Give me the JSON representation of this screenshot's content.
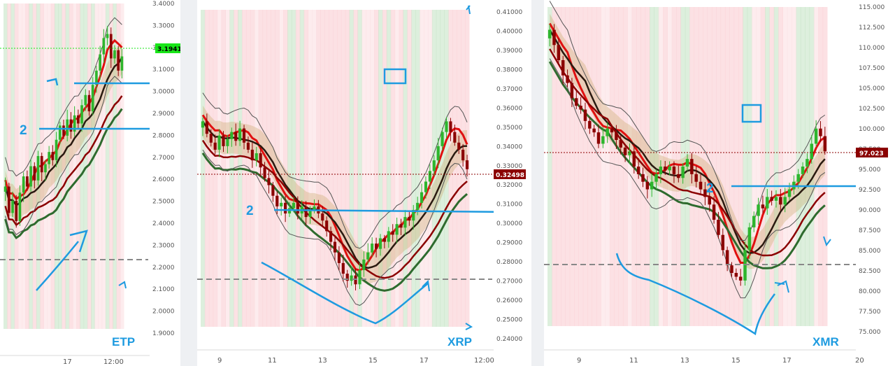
{
  "colors": {
    "bull": "#2db52d",
    "bear": "#8b0000",
    "annotation": "#1e9be0",
    "pink_zone": "#f9c9cd",
    "green_zone": "#9fd19f",
    "dashed": "#888888",
    "price_tag_bg": "#8b0000",
    "price_tag_bg_green": "#19e619"
  },
  "chart_data": [
    {
      "type": "candlestick",
      "symbol": "ETP",
      "ylim": [
        1.85,
        3.45
      ],
      "y_ticks": [
        "3.4000",
        "3.3000",
        "3.2000",
        "3.1000",
        "3.0000",
        "2.9000",
        "2.8000",
        "2.7000",
        "2.6000",
        "2.5000",
        "2.4000",
        "2.3000",
        "2.2000",
        "2.1000",
        "2.0000",
        "1.9000"
      ],
      "x_ticks": [
        "17",
        "12:00"
      ],
      "last_price": "3.1941",
      "hlines": [
        3.04,
        2.83
      ],
      "dashed_line": 2.23,
      "annotations": [
        "1",
        "2",
        "1"
      ],
      "close": [
        2.55,
        2.42,
        2.48,
        2.38,
        2.52,
        2.6,
        2.55,
        2.65,
        2.58,
        2.7,
        2.62,
        2.66,
        2.72,
        2.68,
        2.78,
        2.85,
        2.8,
        2.88,
        2.82,
        2.9,
        2.86,
        2.95,
        3.0,
        2.92,
        3.05,
        3.12,
        3.2,
        3.28,
        3.3,
        3.18,
        3.22,
        3.12,
        3.19
      ]
    },
    {
      "type": "candlestick",
      "symbol": "XRP",
      "ylim": [
        0.236,
        0.415
      ],
      "y_ticks": [
        "0.41000",
        "0.40000",
        "0.39000",
        "0.38000",
        "0.37000",
        "0.36000",
        "0.35000",
        "0.34000",
        "0.33000",
        "0.32000",
        "0.31000",
        "0.30000",
        "0.29000",
        "0.28000",
        "0.27000",
        "0.26000",
        "0.25000",
        "0.24000"
      ],
      "x_ticks": [
        "9",
        "11",
        "13",
        "15",
        "17",
        "12:00"
      ],
      "last_price": "0.32498",
      "hlines": [
        0.306
      ],
      "dashed_line": 0.2715,
      "annotations": [
        "2",
        "1"
      ],
      "close": [
        0.352,
        0.345,
        0.34,
        0.336,
        0.344,
        0.338,
        0.342,
        0.346,
        0.341,
        0.348,
        0.34,
        0.336,
        0.33,
        0.334,
        0.326,
        0.32,
        0.316,
        0.31,
        0.304,
        0.306,
        0.3,
        0.303,
        0.306,
        0.3,
        0.304,
        0.298,
        0.302,
        0.304,
        0.3,
        0.296,
        0.29,
        0.284,
        0.278,
        0.272,
        0.266,
        0.262,
        0.265,
        0.26,
        0.268,
        0.274,
        0.278,
        0.283,
        0.28,
        0.286,
        0.284,
        0.29,
        0.288,
        0.294,
        0.292,
        0.298,
        0.296,
        0.302,
        0.306,
        0.312,
        0.318,
        0.324,
        0.33,
        0.338,
        0.346,
        0.352,
        0.346,
        0.34,
        0.336,
        0.33,
        0.325
      ]
    },
    {
      "type": "candlestick",
      "symbol": "XMR",
      "ylim": [
        74.0,
        116.0
      ],
      "y_ticks": [
        "115.000",
        "112.500",
        "110.000",
        "107.500",
        "105.000",
        "102.500",
        "100.000",
        "97.500",
        "95.000",
        "92.500",
        "90.000",
        "87.500",
        "85.000",
        "82.500",
        "80.000",
        "77.500",
        "75.000"
      ],
      "x_ticks": [
        "9",
        "11",
        "13",
        "15",
        "17",
        "20"
      ],
      "last_price": "97.023",
      "hlines": [
        92.8
      ],
      "dashed_line": 83.3,
      "annotations": [
        "2",
        "1"
      ],
      "close": [
        113,
        111,
        109,
        107,
        106,
        104,
        103,
        102.5,
        101,
        100,
        99.5,
        98,
        99,
        100,
        99.5,
        98.5,
        97.5,
        96.5,
        97,
        95,
        94,
        93,
        92,
        93,
        94,
        95,
        94.5,
        95,
        94,
        93.5,
        95,
        96,
        94,
        93,
        92,
        91,
        90,
        88,
        86,
        84,
        82,
        81,
        80.5,
        80,
        84,
        87,
        88.5,
        90,
        89.5,
        91,
        90.5,
        91,
        90,
        91,
        92,
        93,
        94,
        95,
        96,
        98,
        100,
        99,
        97
      ]
    }
  ],
  "panels": [
    {
      "y_ticks": [
        "3.4000",
        "3.3000",
        "3.2000",
        "3.1000",
        "3.0000",
        "2.9000",
        "2.8000",
        "2.7000",
        "2.6000",
        "2.5000",
        "2.4000",
        "2.3000",
        "2.2000",
        "2.1000",
        "2.0000",
        "1.9000"
      ],
      "x_ticks": [
        "17",
        "12:00"
      ],
      "price_tag": "3.1941",
      "symbol": "ETP"
    },
    {
      "y_ticks": [
        "0.41000",
        "0.40000",
        "0.39000",
        "0.38000",
        "0.37000",
        "0.36000",
        "0.35000",
        "0.34000",
        "0.33000",
        "0.32000",
        "0.31000",
        "0.30000",
        "0.29000",
        "0.28000",
        "0.27000",
        "0.26000",
        "0.25000",
        "0.24000"
      ],
      "x_ticks": [
        "9",
        "11",
        "13",
        "15",
        "17",
        "12:00"
      ],
      "price_tag": "0.32498",
      "symbol": "XRP"
    },
    {
      "y_ticks": [
        "115.000",
        "112.500",
        "110.000",
        "107.500",
        "105.000",
        "102.500",
        "100.000",
        "97.500",
        "95.000",
        "92.500",
        "90.000",
        "87.500",
        "85.000",
        "82.500",
        "80.000",
        "77.500",
        "75.000"
      ],
      "x_ticks": [
        "9",
        "11",
        "13",
        "15",
        "17",
        "20"
      ],
      "price_tag": "97.023",
      "symbol": "XMR"
    }
  ]
}
